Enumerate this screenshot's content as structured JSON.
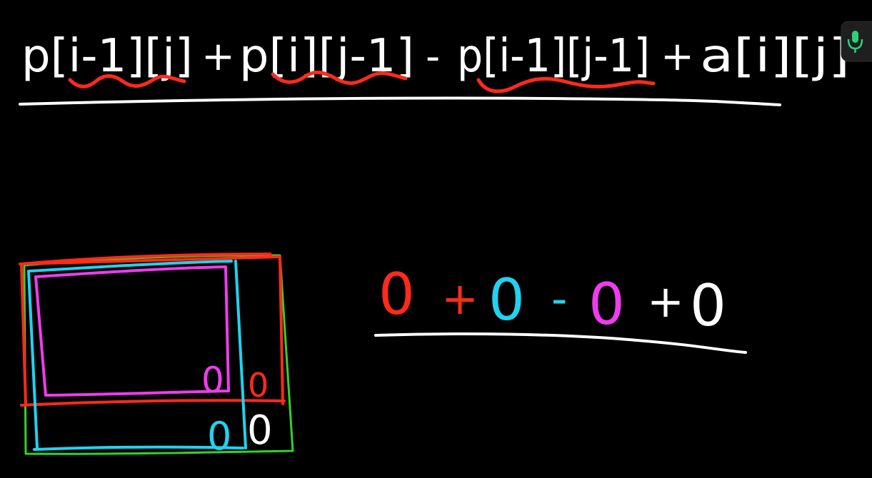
{
  "formula": {
    "terms": [
      {
        "text": "p[i-1][j]"
      },
      {
        "op": "+"
      },
      {
        "text": "p[i][j-1]"
      },
      {
        "op": "-"
      },
      {
        "text": "p[i-1][j-1]"
      },
      {
        "op": "+"
      },
      {
        "text": "a[i][j]"
      }
    ]
  },
  "equation": {
    "tokens": [
      {
        "text": "0",
        "color": "#ff2a1a"
      },
      {
        "text": "+",
        "color": "#ff2a1a"
      },
      {
        "text": "0",
        "color": "#1fd3f0"
      },
      {
        "text": "-",
        "color": "#1fd3f0"
      },
      {
        "text": "0",
        "color": "#ee3cee"
      },
      {
        "text": "+",
        "color": "#ffffff"
      },
      {
        "text": "0",
        "color": "#ffffff"
      }
    ]
  },
  "grid_cells": {
    "magenta_cell": "0",
    "red_cell": "0",
    "cyan_cell": "0",
    "white_cell": "0"
  },
  "colors": {
    "background": "#000000",
    "chalk": "#ffffff",
    "red": "#ff2a1a",
    "cyan": "#1fd3f0",
    "magenta": "#ee3cee",
    "green": "#35d12a"
  },
  "mic": {
    "icon": "microphone-icon",
    "color": "#2bd07a"
  }
}
